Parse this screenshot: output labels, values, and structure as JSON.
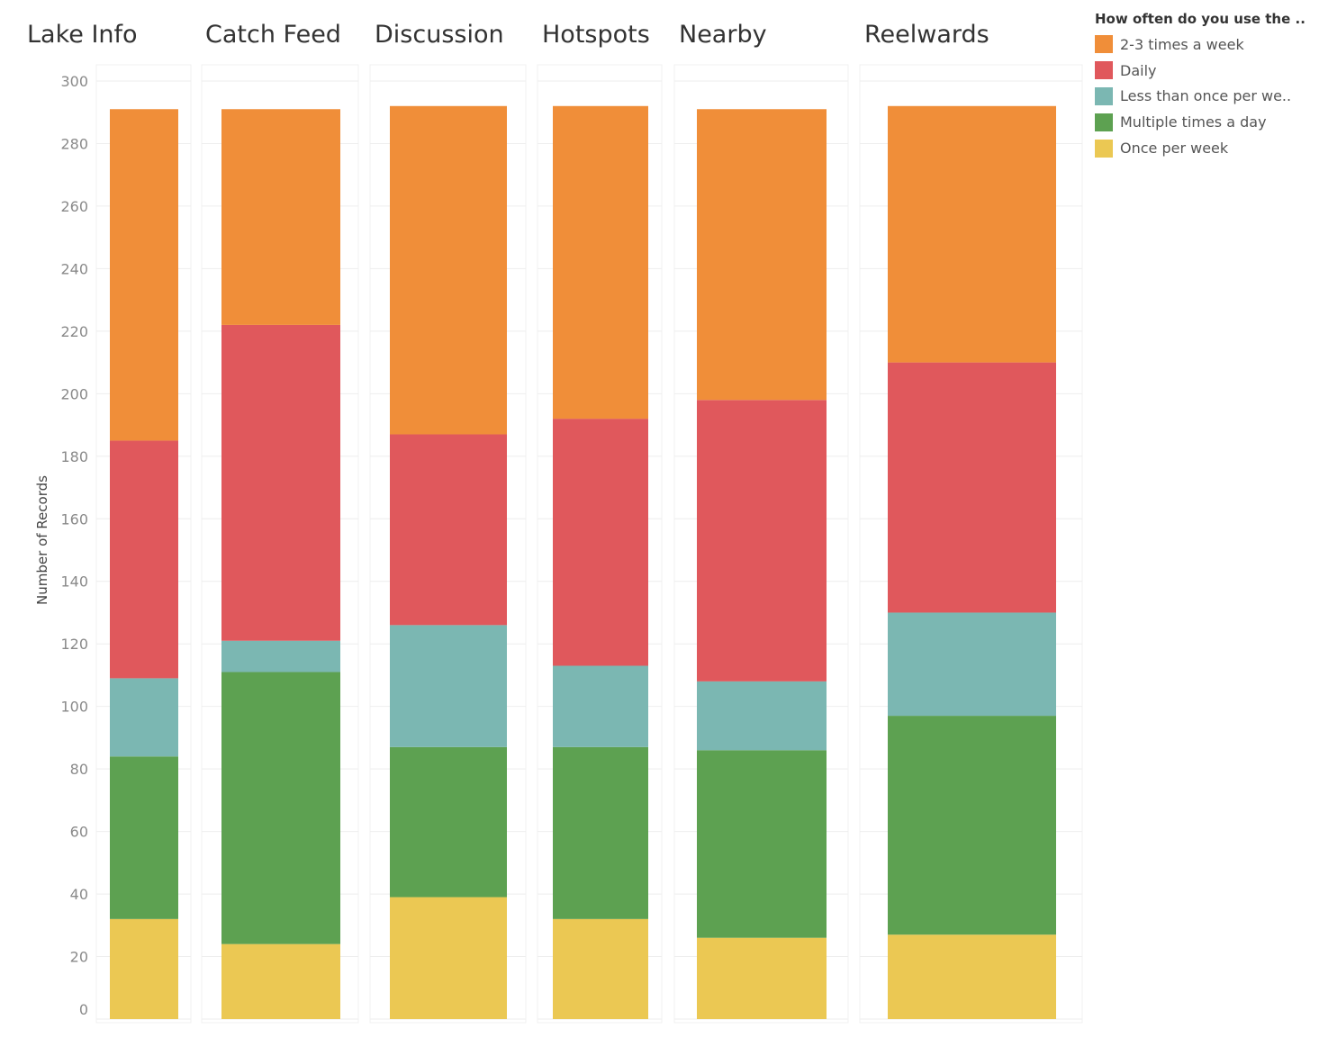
{
  "chart_data": {
    "type": "bar",
    "stacked": true,
    "categories": [
      "Lake Info",
      "Catch Feed",
      "Discussion",
      "Hotspots",
      "Nearby",
      "Reelwards"
    ],
    "ylabel": "Number of Records",
    "ylim": [
      0,
      300
    ],
    "yticks": [
      0,
      20,
      40,
      60,
      80,
      100,
      120,
      140,
      160,
      180,
      200,
      220,
      240,
      260,
      280,
      300
    ],
    "grid": true,
    "legend": {
      "title": "How often do you use the ..",
      "placement": "top-right",
      "labels": [
        "2-3 times a week",
        "Daily",
        "Less than once per we..",
        "Multiple times a day",
        "Once per week"
      ]
    },
    "series": [
      {
        "name": "Once per week",
        "color": "#EBC853",
        "values": [
          32,
          24,
          39,
          32,
          26,
          27
        ]
      },
      {
        "name": "Multiple times a day",
        "color": "#5DA151",
        "values": [
          52,
          87,
          48,
          55,
          60,
          70
        ]
      },
      {
        "name": "Less than once per week",
        "color": "#7BB7B2",
        "values": [
          25,
          10,
          39,
          26,
          22,
          33
        ]
      },
      {
        "name": "Daily",
        "color": "#E0585C",
        "values": [
          76,
          101,
          61,
          79,
          90,
          80
        ]
      },
      {
        "name": "2-3 times a week",
        "color": "#F08E39",
        "values": [
          106,
          69,
          105,
          100,
          93,
          82
        ]
      }
    ]
  }
}
